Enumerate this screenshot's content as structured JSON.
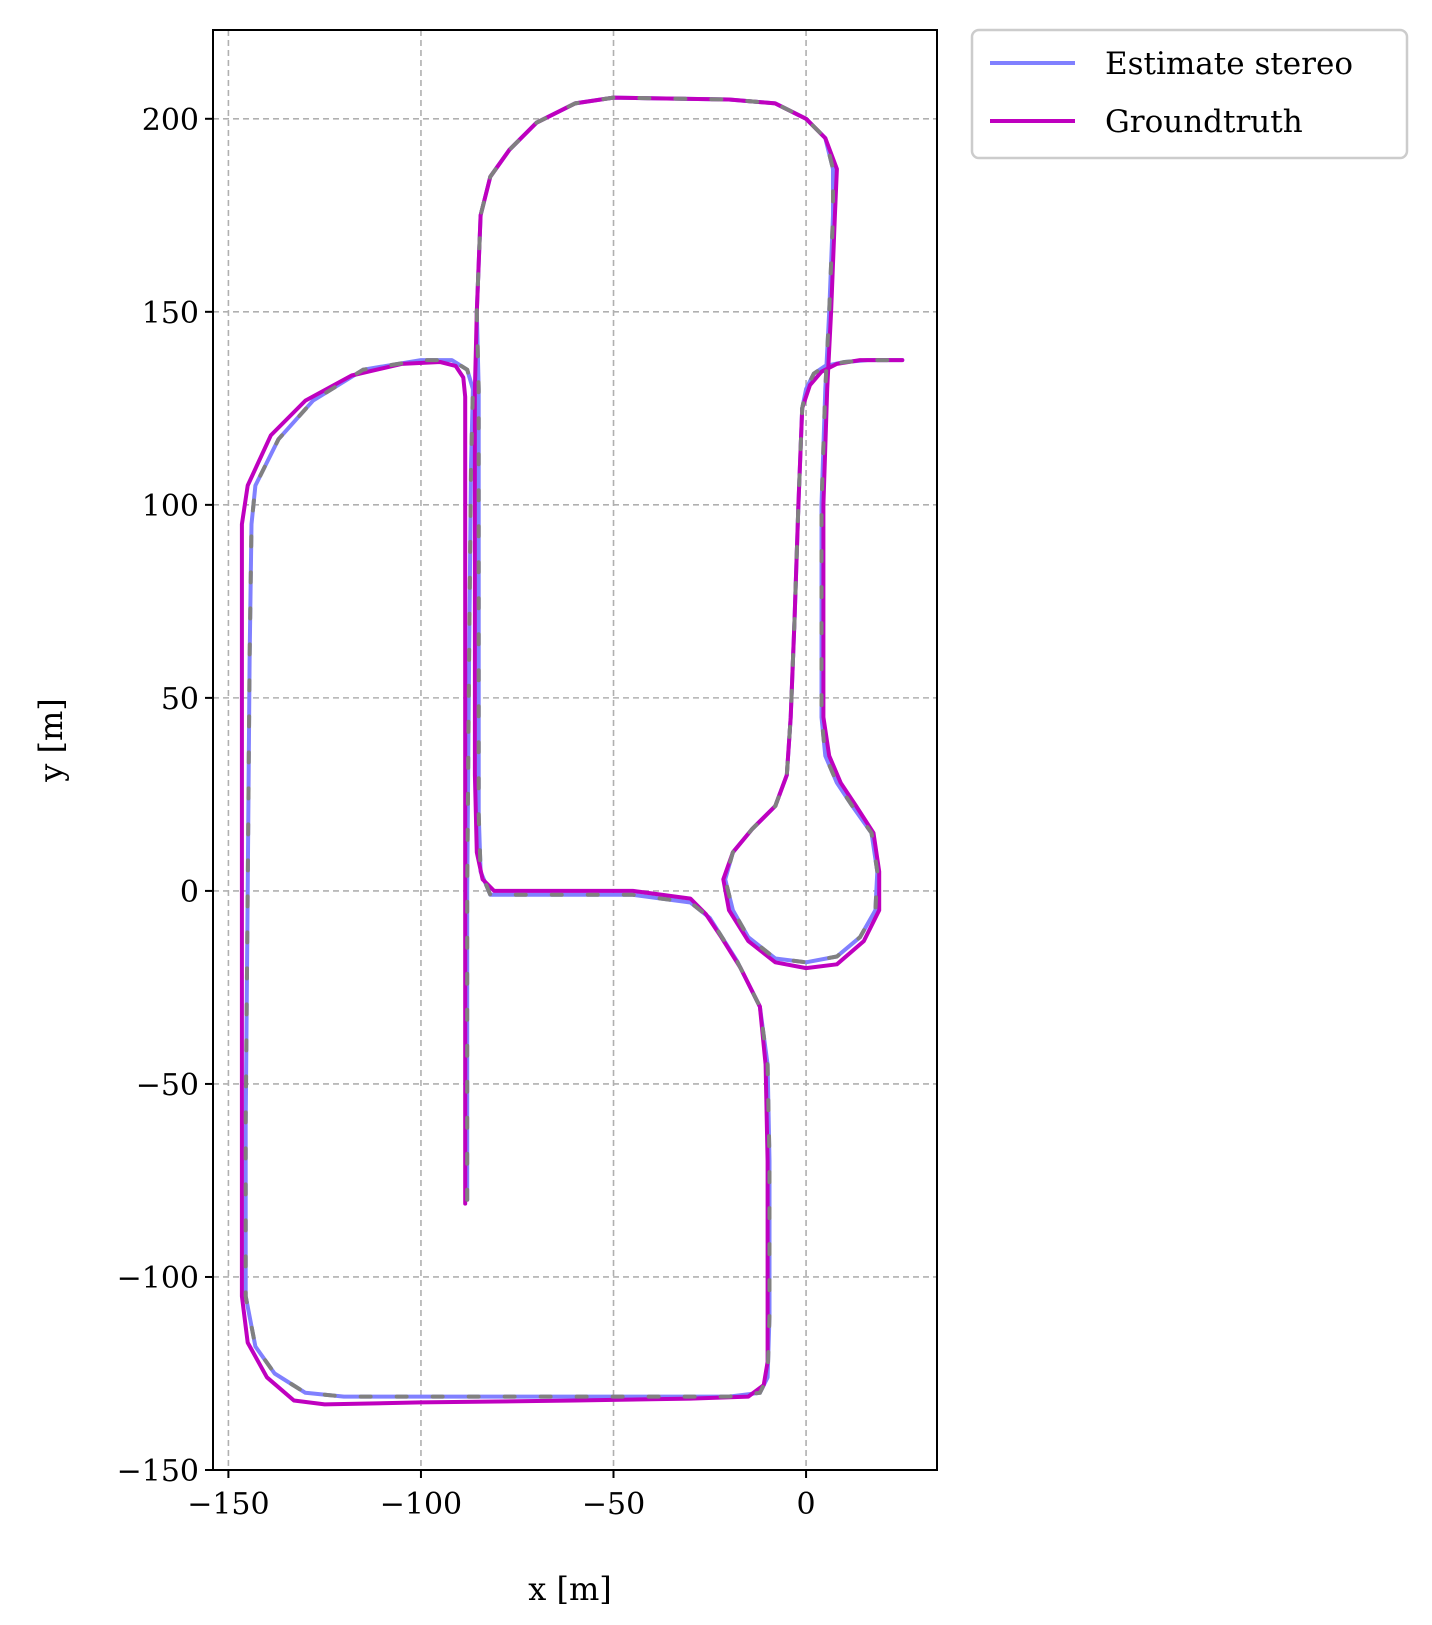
{
  "chart_data": {
    "type": "line",
    "title": "",
    "xlabel": "x [m]",
    "ylabel": "y [m]",
    "xlim": [
      -154,
      34
    ],
    "ylim": [
      -150,
      223
    ],
    "xticks": [
      -150,
      -100,
      -50,
      0
    ],
    "xtick_labels": [
      "−150",
      "−100",
      "−50",
      "0"
    ],
    "yticks": [
      -150,
      -100,
      -50,
      0,
      50,
      100,
      150,
      200
    ],
    "ytick_labels": [
      "−150",
      "−100",
      "−50",
      "0",
      "50",
      "100",
      "150",
      "200"
    ],
    "grid": true,
    "legend_position": "outside top-right",
    "series": [
      {
        "name": "Estimate stereo",
        "color": "#8080ff",
        "points": [
          [
            -88,
            -80
          ],
          [
            -88,
            -40
          ],
          [
            -88,
            0
          ],
          [
            -87.5,
            60
          ],
          [
            -87,
            110
          ],
          [
            -86.5,
            130
          ],
          [
            -88,
            135
          ],
          [
            -92,
            137.5
          ],
          [
            -100,
            137.5
          ],
          [
            -115,
            135
          ],
          [
            -128,
            127
          ],
          [
            -137,
            117
          ],
          [
            -143,
            105
          ],
          [
            -144,
            95
          ],
          [
            -144.5,
            60
          ],
          [
            -145,
            0
          ],
          [
            -145.5,
            -60
          ],
          [
            -145.5,
            -105
          ],
          [
            -143,
            -118
          ],
          [
            -138,
            -125
          ],
          [
            -130,
            -130
          ],
          [
            -120,
            -131
          ],
          [
            -80,
            -131
          ],
          [
            -40,
            -131
          ],
          [
            -20,
            -131
          ],
          [
            -12,
            -130
          ],
          [
            -10,
            -126
          ],
          [
            -9.5,
            -110
          ],
          [
            -9.5,
            -70
          ],
          [
            -10,
            -45
          ],
          [
            -12,
            -30
          ],
          [
            -18,
            -18
          ],
          [
            -25,
            -7
          ],
          [
            -30,
            -3
          ],
          [
            -45,
            -1
          ],
          [
            -75,
            -1
          ],
          [
            -82,
            -1
          ],
          [
            -84.5,
            5
          ],
          [
            -85,
            20
          ],
          [
            -85,
            60
          ],
          [
            -85,
            100
          ],
          [
            -85,
            130
          ],
          [
            -85.5,
            150
          ],
          [
            -84.5,
            175
          ],
          [
            -82,
            185
          ],
          [
            -77,
            192
          ],
          [
            -70,
            199
          ],
          [
            -60,
            204
          ],
          [
            -50,
            205.5
          ],
          [
            -20,
            205
          ],
          [
            -8,
            204
          ],
          [
            0,
            200
          ],
          [
            5,
            195
          ],
          [
            7,
            187
          ],
          [
            7,
            175
          ],
          [
            6,
            150
          ],
          [
            5,
            130
          ],
          [
            4,
            100
          ],
          [
            4,
            70
          ],
          [
            4,
            45
          ],
          [
            5,
            35
          ],
          [
            8,
            28
          ],
          [
            12,
            22
          ],
          [
            17,
            15
          ],
          [
            18.5,
            5
          ],
          [
            18,
            -5
          ],
          [
            14,
            -12
          ],
          [
            8,
            -17
          ],
          [
            0,
            -18.5
          ],
          [
            -8,
            -17.5
          ],
          [
            -15,
            -12
          ],
          [
            -19,
            -5
          ],
          [
            -21,
            3
          ],
          [
            -19,
            10
          ],
          [
            -14,
            16
          ],
          [
            -8,
            22
          ],
          [
            -5,
            30
          ],
          [
            -4,
            45
          ],
          [
            -3,
            70
          ],
          [
            -2,
            100
          ],
          [
            -1,
            125
          ],
          [
            0,
            130
          ],
          [
            2,
            134
          ],
          [
            5,
            136
          ],
          [
            10,
            137
          ],
          [
            16,
            137.5
          ],
          [
            25,
            137.5
          ]
        ]
      },
      {
        "name": "Groundtruth",
        "color": "#bf00bf",
        "points": [
          [
            -88.5,
            -81
          ],
          [
            -88.5,
            -40
          ],
          [
            -88.5,
            0
          ],
          [
            -88.5,
            60
          ],
          [
            -88.5,
            110
          ],
          [
            -88.5,
            128
          ],
          [
            -89,
            133
          ],
          [
            -91,
            136
          ],
          [
            -95,
            137
          ],
          [
            -105,
            136.5
          ],
          [
            -118,
            133.5
          ],
          [
            -130,
            127
          ],
          [
            -139,
            118
          ],
          [
            -145,
            105
          ],
          [
            -146.5,
            95
          ],
          [
            -146.5,
            60
          ],
          [
            -146.5,
            0
          ],
          [
            -146.5,
            -60
          ],
          [
            -146.5,
            -105
          ],
          [
            -145,
            -117
          ],
          [
            -140,
            -126
          ],
          [
            -133,
            -132
          ],
          [
            -125,
            -133
          ],
          [
            -100,
            -132.5
          ],
          [
            -60,
            -132
          ],
          [
            -30,
            -131.5
          ],
          [
            -15,
            -131
          ],
          [
            -11,
            -128
          ],
          [
            -10,
            -122
          ],
          [
            -10,
            -105
          ],
          [
            -10,
            -70
          ],
          [
            -10.5,
            -45
          ],
          [
            -12,
            -30
          ],
          [
            -17,
            -20
          ],
          [
            -22,
            -12
          ],
          [
            -26,
            -6
          ],
          [
            -30,
            -2
          ],
          [
            -45,
            0
          ],
          [
            -75,
            0
          ],
          [
            -81,
            0
          ],
          [
            -84,
            3
          ],
          [
            -85.5,
            10
          ],
          [
            -86,
            30
          ],
          [
            -86,
            60
          ],
          [
            -86,
            100
          ],
          [
            -86,
            130
          ],
          [
            -85.5,
            150
          ],
          [
            -84.5,
            175
          ],
          [
            -82,
            185
          ],
          [
            -77,
            192
          ],
          [
            -70,
            199
          ],
          [
            -60,
            204
          ],
          [
            -50,
            205.5
          ],
          [
            -20,
            205
          ],
          [
            -8,
            204
          ],
          [
            0,
            200
          ],
          [
            5,
            195
          ],
          [
            8,
            187
          ],
          [
            7.5,
            175
          ],
          [
            6.5,
            150
          ],
          [
            5.5,
            130
          ],
          [
            4.5,
            100
          ],
          [
            4.5,
            70
          ],
          [
            4.5,
            45
          ],
          [
            6,
            35
          ],
          [
            9,
            28
          ],
          [
            13,
            22
          ],
          [
            17.5,
            15
          ],
          [
            19,
            5
          ],
          [
            19,
            -5
          ],
          [
            15,
            -13
          ],
          [
            8,
            -19
          ],
          [
            0,
            -20
          ],
          [
            -8,
            -18.5
          ],
          [
            -15,
            -13
          ],
          [
            -20,
            -5
          ],
          [
            -21.5,
            3
          ],
          [
            -19,
            10
          ],
          [
            -14,
            16
          ],
          [
            -8,
            22
          ],
          [
            -5,
            30
          ],
          [
            -4,
            45
          ],
          [
            -3,
            70
          ],
          [
            -2,
            100
          ],
          [
            -1,
            125
          ],
          [
            1,
            131
          ],
          [
            4,
            134.5
          ],
          [
            8,
            136.5
          ],
          [
            14,
            137.5
          ],
          [
            25,
            137.5
          ]
        ]
      }
    ]
  }
}
